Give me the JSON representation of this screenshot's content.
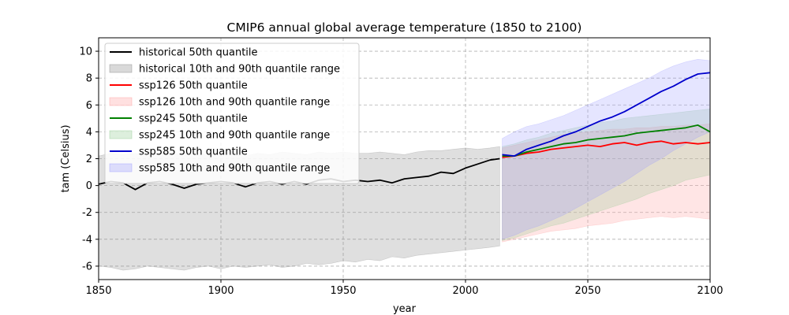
{
  "chart_data": {
    "type": "line",
    "title": "CMIP6 annual global average temperature (1850 to 2100)",
    "xlabel": "year",
    "ylabel": "tam (Celsius)",
    "xlim": [
      1850,
      2100
    ],
    "ylim": [
      -7,
      11
    ],
    "xticks": [
      1850,
      1900,
      1950,
      2000,
      2050,
      2100
    ],
    "yticks": [
      -6,
      -4,
      -2,
      0,
      2,
      4,
      6,
      8,
      10
    ],
    "grid": true,
    "legend_position": "upper-left",
    "series": [
      {
        "name": "historical 50th quantile",
        "color": "#000000",
        "x": [
          1850,
          1855,
          1860,
          1865,
          1870,
          1875,
          1880,
          1885,
          1890,
          1895,
          1900,
          1905,
          1910,
          1915,
          1920,
          1925,
          1930,
          1935,
          1940,
          1945,
          1950,
          1955,
          1960,
          1965,
          1970,
          1975,
          1980,
          1985,
          1990,
          1995,
          2000,
          2005,
          2010,
          2014
        ],
        "values": [
          0.1,
          0.3,
          0.2,
          -0.3,
          0.2,
          0.3,
          0.1,
          -0.2,
          0.1,
          0.2,
          0.3,
          0.2,
          -0.1,
          0.2,
          0.3,
          0.1,
          0.3,
          0.1,
          0.4,
          0.5,
          0.3,
          0.4,
          0.3,
          0.4,
          0.2,
          0.5,
          0.6,
          0.7,
          1.0,
          0.9,
          1.3,
          1.6,
          1.9,
          2.0
        ]
      },
      {
        "name": "historical 10th and 90th quantile range",
        "color": "#808080",
        "x": [
          1850,
          1855,
          1860,
          1865,
          1870,
          1875,
          1880,
          1885,
          1890,
          1895,
          1900,
          1905,
          1910,
          1915,
          1920,
          1925,
          1930,
          1935,
          1940,
          1945,
          1950,
          1955,
          1960,
          1965,
          1970,
          1975,
          1980,
          1985,
          1990,
          1995,
          2000,
          2005,
          2010,
          2014
        ],
        "low": [
          -6.0,
          -6.1,
          -6.3,
          -6.2,
          -6.0,
          -6.1,
          -6.2,
          -6.3,
          -6.1,
          -6.0,
          -6.2,
          -6.0,
          -6.1,
          -6.0,
          -5.9,
          -6.1,
          -6.0,
          -5.8,
          -5.9,
          -5.8,
          -5.6,
          -5.7,
          -5.5,
          -5.6,
          -5.3,
          -5.4,
          -5.2,
          -5.1,
          -5.0,
          -4.9,
          -4.8,
          -4.7,
          -4.6,
          -4.5
        ],
        "high": [
          2.2,
          2.4,
          2.3,
          2.4,
          2.3,
          2.5,
          2.4,
          2.3,
          2.4,
          2.3,
          2.4,
          2.3,
          2.2,
          2.4,
          2.3,
          2.5,
          2.4,
          2.3,
          2.5,
          2.4,
          2.5,
          2.4,
          2.4,
          2.5,
          2.4,
          2.3,
          2.5,
          2.6,
          2.6,
          2.7,
          2.8,
          2.7,
          2.8,
          2.9
        ]
      },
      {
        "name": "ssp126 50th quantile",
        "color": "#ff0000",
        "x": [
          2015,
          2020,
          2025,
          2030,
          2035,
          2040,
          2045,
          2050,
          2055,
          2060,
          2065,
          2070,
          2075,
          2080,
          2085,
          2090,
          2095,
          2100
        ],
        "values": [
          2.1,
          2.2,
          2.4,
          2.5,
          2.7,
          2.8,
          2.9,
          3.0,
          2.9,
          3.1,
          3.2,
          3.0,
          3.2,
          3.3,
          3.1,
          3.2,
          3.1,
          3.2
        ]
      },
      {
        "name": "ssp126 10th and 90th quantile range",
        "color": "#ff9999",
        "x": [
          2015,
          2020,
          2025,
          2030,
          2035,
          2040,
          2045,
          2050,
          2055,
          2060,
          2065,
          2070,
          2075,
          2080,
          2085,
          2090,
          2095,
          2100
        ],
        "low": [
          -4.2,
          -4.0,
          -3.8,
          -3.6,
          -3.4,
          -3.3,
          -3.2,
          -3.0,
          -2.9,
          -2.8,
          -2.6,
          -2.5,
          -2.4,
          -2.3,
          -2.4,
          -2.3,
          -2.4,
          -2.5
        ],
        "high": [
          2.8,
          3.0,
          3.2,
          3.4,
          3.6,
          3.8,
          3.9,
          4.0,
          4.1,
          4.2,
          4.2,
          4.3,
          4.3,
          4.4,
          4.4,
          4.5,
          4.5,
          4.6
        ]
      },
      {
        "name": "ssp245 50th quantile",
        "color": "#008000",
        "x": [
          2015,
          2020,
          2025,
          2030,
          2035,
          2040,
          2045,
          2050,
          2055,
          2060,
          2065,
          2070,
          2075,
          2080,
          2085,
          2090,
          2095,
          2100
        ],
        "values": [
          2.2,
          2.2,
          2.5,
          2.7,
          2.9,
          3.1,
          3.2,
          3.4,
          3.5,
          3.6,
          3.7,
          3.9,
          4.0,
          4.1,
          4.2,
          4.3,
          4.5,
          4.0
        ]
      },
      {
        "name": "ssp245 10th and 90th quantile range",
        "color": "#8fc98f",
        "x": [
          2015,
          2020,
          2025,
          2030,
          2035,
          2040,
          2045,
          2050,
          2055,
          2060,
          2065,
          2070,
          2075,
          2080,
          2085,
          2090,
          2095,
          2100
        ],
        "low": [
          -4.1,
          -3.9,
          -3.6,
          -3.3,
          -3.0,
          -2.8,
          -2.5,
          -2.2,
          -1.9,
          -1.6,
          -1.3,
          -1.0,
          -0.6,
          -0.3,
          0.0,
          0.4,
          0.6,
          0.8
        ],
        "high": [
          2.9,
          3.1,
          3.4,
          3.6,
          3.9,
          4.1,
          4.3,
          4.5,
          4.7,
          4.8,
          5.0,
          5.1,
          5.2,
          5.3,
          5.4,
          5.5,
          5.6,
          5.7
        ]
      },
      {
        "name": "ssp585 50th quantile",
        "color": "#0000cc",
        "x": [
          2015,
          2020,
          2025,
          2030,
          2035,
          2040,
          2045,
          2050,
          2055,
          2060,
          2065,
          2070,
          2075,
          2080,
          2085,
          2090,
          2095,
          2100
        ],
        "values": [
          2.3,
          2.2,
          2.7,
          3.0,
          3.3,
          3.7,
          4.0,
          4.4,
          4.8,
          5.1,
          5.5,
          6.0,
          6.5,
          7.0,
          7.4,
          7.9,
          8.3,
          8.4
        ]
      },
      {
        "name": "ssp585 10th and 90th quantile range",
        "color": "#9999ff",
        "x": [
          2015,
          2020,
          2025,
          2030,
          2035,
          2040,
          2045,
          2050,
          2055,
          2060,
          2065,
          2070,
          2075,
          2080,
          2085,
          2090,
          2095,
          2100
        ],
        "low": [
          -4.0,
          -3.7,
          -3.3,
          -3.0,
          -2.6,
          -2.2,
          -1.7,
          -1.2,
          -0.7,
          -0.2,
          0.3,
          0.9,
          1.5,
          2.0,
          2.6,
          3.1,
          3.6,
          4.0
        ],
        "high": [
          3.5,
          4.0,
          4.4,
          4.6,
          4.9,
          5.2,
          5.6,
          6.0,
          6.4,
          6.8,
          7.2,
          7.6,
          8.0,
          8.5,
          8.9,
          9.2,
          9.4,
          9.3
        ]
      }
    ]
  }
}
